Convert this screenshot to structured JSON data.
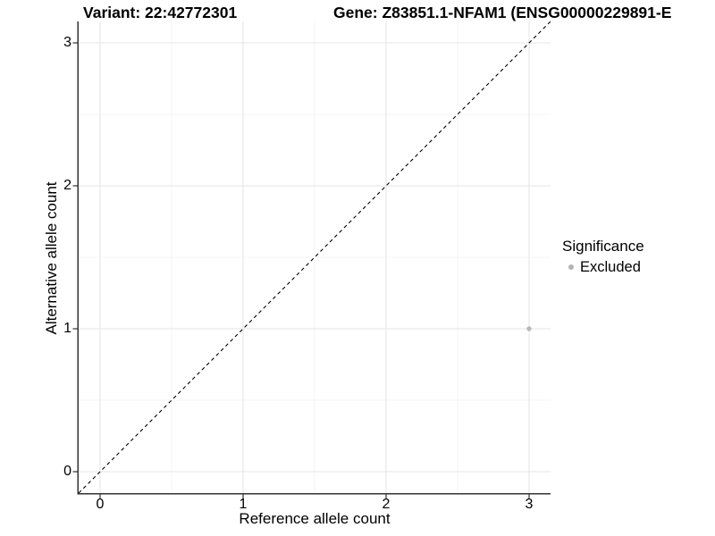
{
  "titles": {
    "variant": "Variant: 22:42772301",
    "gene": "Gene: Z83851.1-NFAM1 (ENSG00000229891-E"
  },
  "chart_data": {
    "type": "scatter",
    "title_left": "Variant: 22:42772301",
    "title_right": "Gene: Z83851.1-NFAM1 (ENSG00000229891-E",
    "xlabel": "Reference allele count",
    "ylabel": "Alternative allele count",
    "xlim": [
      -0.15,
      3.15
    ],
    "ylim": [
      -0.15,
      3.15
    ],
    "major_ticks": [
      0,
      1,
      2,
      3
    ],
    "minor_gridlines": [
      0.5,
      1.5,
      2.5
    ],
    "grid": true,
    "legend": {
      "title": "Significance",
      "position": "right",
      "entries": [
        {
          "label": "Excluded",
          "color": "#b3b3b3"
        }
      ]
    },
    "series": [
      {
        "name": "Excluded",
        "color": "#b9b9b9",
        "points": [
          [
            3,
            1
          ]
        ]
      }
    ],
    "reference_line": {
      "kind": "identity y=x",
      "style": "dashed",
      "color": "#000000"
    },
    "colors": {
      "axis_line": "#333333",
      "major_grid": "#e5e5e5",
      "minor_grid": "#f2f2f2",
      "tick_text": "#000000"
    }
  }
}
